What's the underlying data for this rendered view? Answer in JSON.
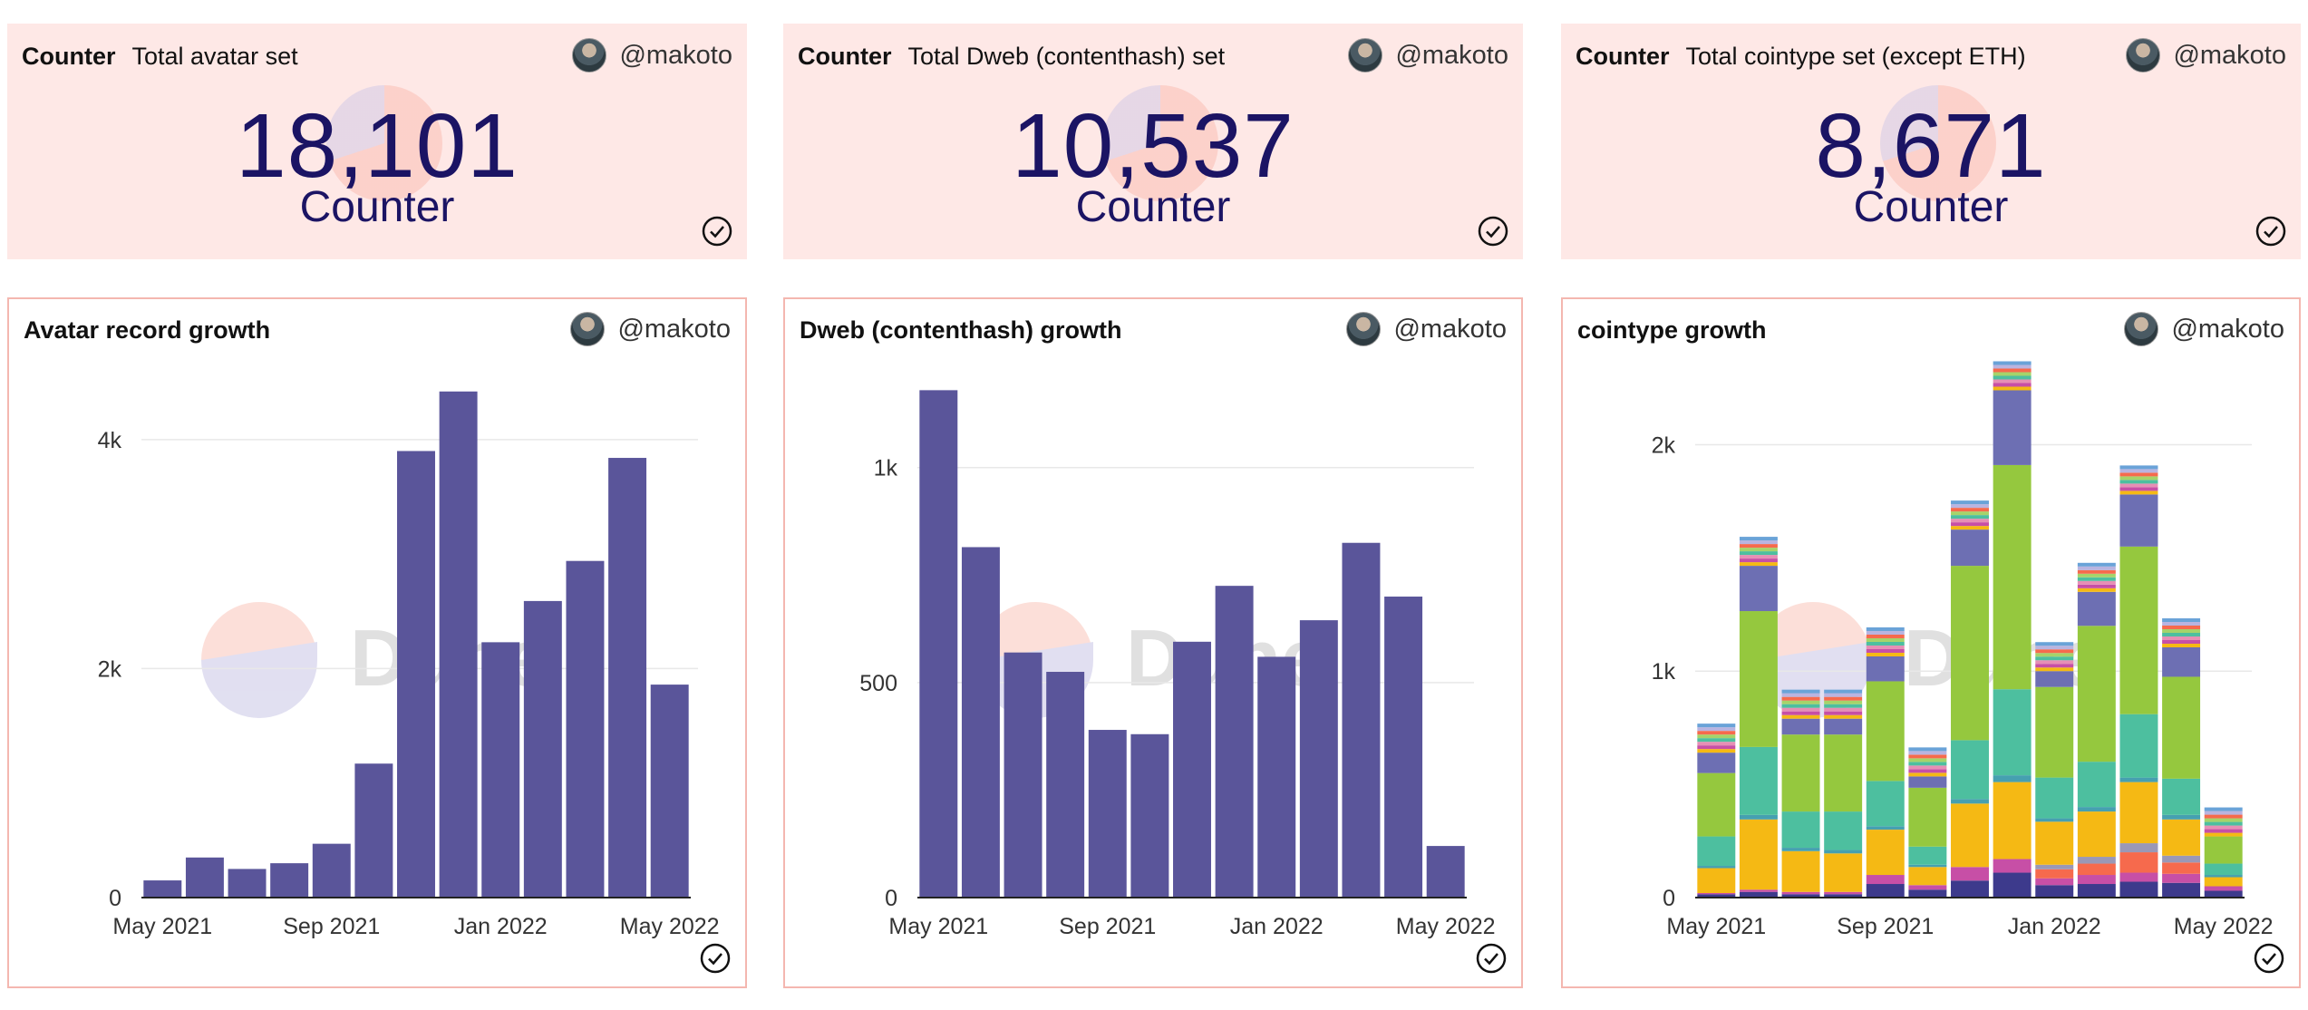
{
  "counters": [
    {
      "label": "Counter",
      "title": "Total avatar set",
      "author": "@makoto",
      "value": "18,101",
      "caption": "Counter"
    },
    {
      "label": "Counter",
      "title": "Total Dweb (contenthash) set",
      "author": "@makoto",
      "value": "10,537",
      "caption": "Counter"
    },
    {
      "label": "Counter",
      "title": "Total cointype set (except ETH)",
      "author": "@makoto",
      "value": "8,671",
      "caption": "Counter"
    }
  ],
  "charts_meta": [
    {
      "title": "Avatar record growth",
      "author": "@makoto"
    },
    {
      "title": "Dweb (contenthash) growth",
      "author": "@makoto"
    },
    {
      "title": "cointype growth",
      "author": "@makoto"
    }
  ],
  "watermark": "Dune",
  "colors": {
    "bar": "#5a559a",
    "counter_text": "#1b1464",
    "counter_bg": "#fee8e6",
    "card_border": "#f4b7b0"
  },
  "chart_data": [
    {
      "type": "bar",
      "title": "Avatar record growth",
      "categories": [
        "May 2021",
        "Jun 2021",
        "Jul 2021",
        "Aug 2021",
        "Sep 2021",
        "Oct 2021",
        "Nov 2021",
        "Dec 2021",
        "Jan 2022",
        "Feb 2022",
        "Mar 2022",
        "Apr 2022",
        "May 2022"
      ],
      "values": [
        150,
        350,
        250,
        300,
        470,
        1170,
        3900,
        4420,
        2230,
        2590,
        2940,
        3840,
        1860
      ],
      "ylim": [
        0,
        4450
      ],
      "yticks": [
        0,
        2000,
        4000
      ],
      "ytick_labels": [
        "0",
        "2k",
        "4k"
      ],
      "xtick_labels": [
        "May 2021",
        "Sep 2021",
        "Jan 2022",
        "May 2022"
      ],
      "xtick_index": [
        0,
        4,
        8,
        12
      ]
    },
    {
      "type": "bar",
      "title": "Dweb (contenthash) growth",
      "categories": [
        "May 2021",
        "Jun 2021",
        "Jul 2021",
        "Aug 2021",
        "Sep 2021",
        "Oct 2021",
        "Nov 2021",
        "Dec 2021",
        "Jan 2022",
        "Feb 2022",
        "Mar 2022",
        "Apr 2022",
        "May 2022"
      ],
      "values": [
        1180,
        815,
        570,
        525,
        390,
        380,
        595,
        725,
        560,
        645,
        825,
        700,
        120
      ],
      "ylim": [
        0,
        1185
      ],
      "yticks": [
        0,
        500,
        1000
      ],
      "ytick_labels": [
        "0",
        "500",
        "1k"
      ],
      "xtick_labels": [
        "May 2021",
        "Sep 2021",
        "Jan 2022",
        "May 2022"
      ],
      "xtick_index": [
        0,
        4,
        8,
        12
      ]
    },
    {
      "type": "bar",
      "stacked": true,
      "title": "cointype growth",
      "categories": [
        "May 2021",
        "Jun 2021",
        "Jul 2021",
        "Aug 2021",
        "Sep 2021",
        "Oct 2021",
        "Nov 2021",
        "Dec 2021",
        "Jan 2022",
        "Feb 2022",
        "Mar 2022",
        "Apr 2022",
        "May 2022"
      ],
      "ylim": [
        0,
        2250
      ],
      "yticks": [
        0,
        1000,
        2000
      ],
      "ytick_labels": [
        "0",
        "1k",
        "2k"
      ],
      "xtick_labels": [
        "May 2021",
        "Sep 2021",
        "Jan 2022",
        "May 2022"
      ],
      "xtick_index": [
        0,
        4,
        8,
        12
      ],
      "series": [
        {
          "name": "dark blue",
          "color": "#3d3a8c",
          "values": [
            15,
            25,
            15,
            15,
            60,
            35,
            75,
            110,
            55,
            60,
            70,
            65,
            30
          ]
        },
        {
          "name": "magenta",
          "color": "#c74fa6",
          "values": [
            5,
            10,
            10,
            10,
            40,
            20,
            60,
            60,
            30,
            40,
            40,
            40,
            20
          ]
        },
        {
          "name": "orange-red",
          "color": "#f66a4d",
          "values": [
            0,
            0,
            0,
            0,
            0,
            0,
            0,
            0,
            40,
            50,
            90,
            50,
            0
          ]
        },
        {
          "name": "grey",
          "color": "#9a98b6",
          "values": [
            0,
            0,
            0,
            0,
            0,
            0,
            0,
            0,
            20,
            30,
            40,
            30,
            0
          ]
        },
        {
          "name": "yellow",
          "color": "#f5b914",
          "values": [
            110,
            310,
            180,
            170,
            200,
            80,
            280,
            340,
            190,
            200,
            270,
            160,
            40
          ]
        },
        {
          "name": "teal line",
          "color": "#46a0b0",
          "values": [
            10,
            20,
            15,
            15,
            15,
            10,
            20,
            30,
            15,
            20,
            20,
            20,
            10
          ]
        },
        {
          "name": "green-teal",
          "color": "#4dbf9f",
          "values": [
            130,
            300,
            160,
            170,
            200,
            80,
            260,
            380,
            180,
            200,
            280,
            160,
            50
          ]
        },
        {
          "name": "lime",
          "color": "#95c83e",
          "values": [
            280,
            600,
            340,
            340,
            440,
            260,
            770,
            990,
            400,
            600,
            740,
            450,
            120
          ]
        },
        {
          "name": "others",
          "color": "#6d6fb3",
          "values": [
            90,
            200,
            70,
            70,
            110,
            50,
            160,
            330,
            70,
            150,
            230,
            130,
            0
          ]
        }
      ]
    }
  ]
}
